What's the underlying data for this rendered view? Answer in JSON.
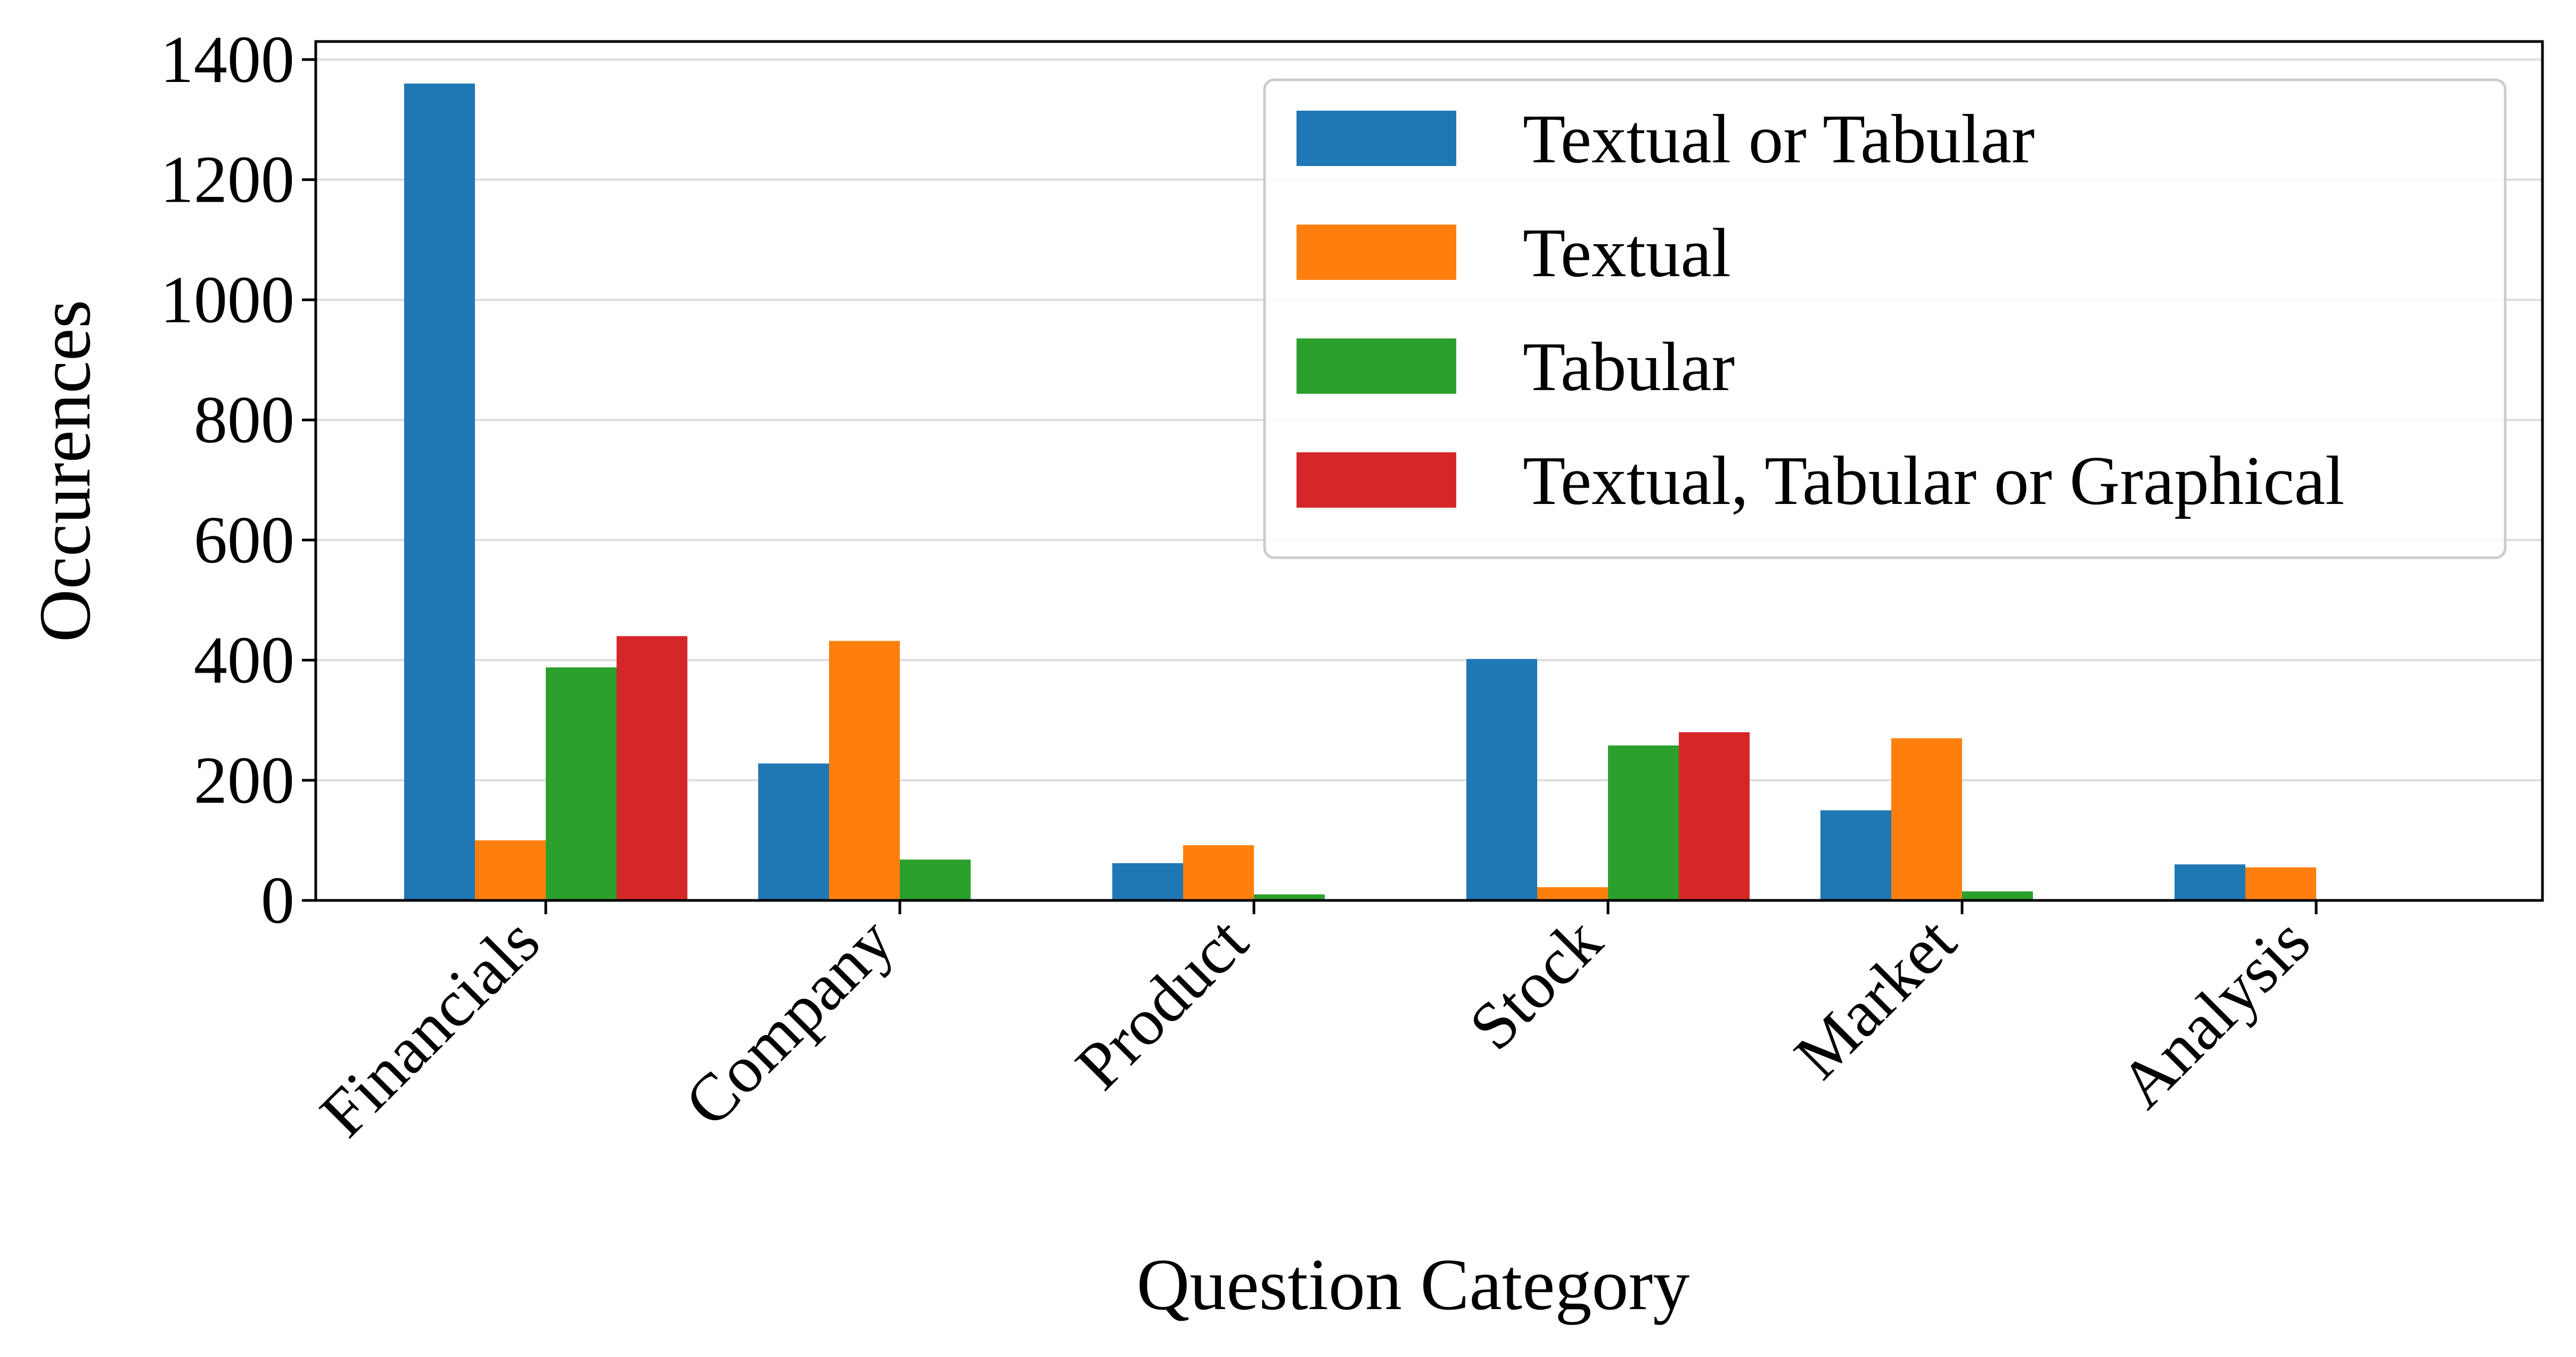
{
  "chart_data": {
    "type": "bar",
    "title": "",
    "xlabel": "Question Category",
    "ylabel": "Occurences",
    "categories": [
      "Financials",
      "Company",
      "Product",
      "Stock",
      "Market",
      "Analysis"
    ],
    "series": [
      {
        "name": "Textual or Tabular",
        "color": "#1f77b4",
        "values": [
          1360,
          228,
          62,
          402,
          150,
          60
        ]
      },
      {
        "name": "Textual",
        "color": "#ff7f0e",
        "values": [
          100,
          432,
          92,
          22,
          270,
          55
        ]
      },
      {
        "name": "Tabular",
        "color": "#2ca02c",
        "values": [
          388,
          68,
          10,
          258,
          15,
          0
        ]
      },
      {
        "name": "Textual, Tabular or Graphical",
        "color": "#d62728",
        "values": [
          440,
          0,
          0,
          280,
          0,
          0
        ]
      }
    ],
    "ylim": [
      0,
      1430
    ],
    "yticks": [
      0,
      200,
      400,
      600,
      800,
      1000,
      1200,
      1400
    ],
    "grid": "y",
    "legend": "top-right"
  }
}
